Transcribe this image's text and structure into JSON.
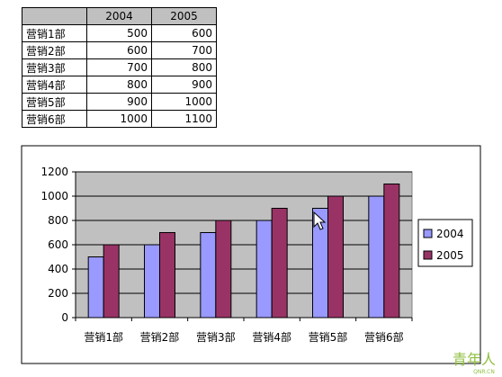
{
  "table": {
    "headers": [
      "",
      "2004",
      "2005"
    ],
    "rows": [
      [
        "营销1部",
        "500",
        "600"
      ],
      [
        "营销2部",
        "600",
        "700"
      ],
      [
        "营销3部",
        "700",
        "800"
      ],
      [
        "营销4部",
        "800",
        "900"
      ],
      [
        "营销5部",
        "900",
        "1000"
      ],
      [
        "营销6部",
        "1000",
        "1100"
      ]
    ]
  },
  "chart_data": {
    "type": "bar",
    "title": "",
    "xlabel": "",
    "ylabel": "",
    "categories": [
      "营销1部",
      "营销2部",
      "营销3部",
      "营销4部",
      "营销5部",
      "营销6部"
    ],
    "series": [
      {
        "name": "2004",
        "values": [
          500,
          600,
          700,
          800,
          900,
          1000
        ],
        "color": "#9999ff"
      },
      {
        "name": "2005",
        "values": [
          600,
          700,
          800,
          900,
          1000,
          1100
        ],
        "color": "#993366"
      }
    ],
    "ylim": [
      0,
      1200
    ],
    "yticks": [
      0,
      200,
      400,
      600,
      800,
      1000,
      1200
    ],
    "grid": true,
    "plot_background": "#c0c0c0",
    "legend_position": "right"
  },
  "watermark": {
    "text": "青年人",
    "sub": "QNR.CN"
  }
}
